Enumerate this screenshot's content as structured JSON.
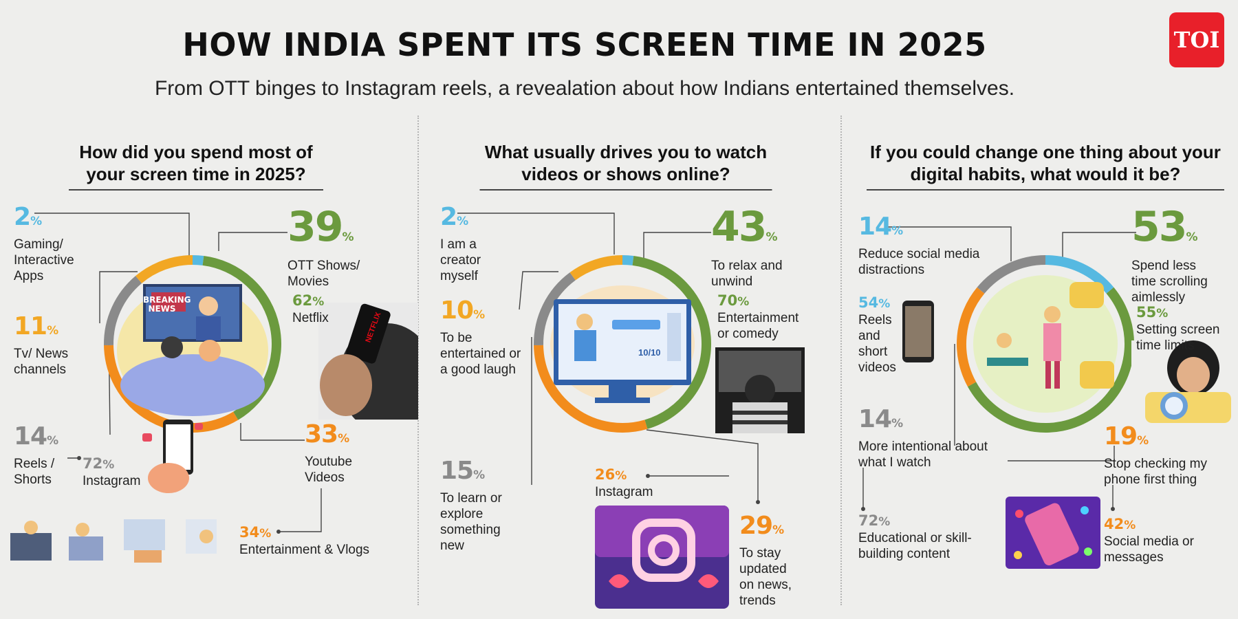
{
  "header": {
    "title": "HOW INDIA SPENT ITS SCREEN TIME IN 2025",
    "subtitle": "From OTT binges to Instagram reels, a revealation about how Indians entertained themselves.",
    "logo": "TOI"
  },
  "colors": {
    "green": "#6b9a3e",
    "orange": "#f28c1c",
    "blue": "#56b9e1",
    "gray": "#8a8a8a",
    "yellow": "#f2a724"
  },
  "panels": [
    {
      "question": "How did you spend most of your screen time in 2025?",
      "items": [
        {
          "value": "2",
          "unit": "%",
          "label": "Gaming/ Interactive Apps"
        },
        {
          "value": "39",
          "unit": "%",
          "label": "OTT Shows/ Movies",
          "sub_value": "62",
          "sub_unit": "%",
          "sub_label": "Netflix"
        },
        {
          "value": "11",
          "unit": "%",
          "label": "Tv/ News channels"
        },
        {
          "value": "14",
          "unit": "%",
          "label": "Reels / Shorts",
          "sub_value": "72",
          "sub_unit": "%",
          "sub_label": "Instagram"
        },
        {
          "value": "33",
          "unit": "%",
          "label": "Youtube Videos",
          "sub_value": "34",
          "sub_unit": "%",
          "sub_label": "Entertainment & Vlogs"
        }
      ],
      "tv_text": "BREAKING NEWS",
      "phone_brand": "NETFLIX"
    },
    {
      "question": "What usually drives you to watch videos or shows online?",
      "items": [
        {
          "value": "2",
          "unit": "%",
          "label": "I am a creator myself"
        },
        {
          "value": "43",
          "unit": "%",
          "label": "To relax and unwind",
          "sub_value": "70",
          "sub_unit": "%",
          "sub_label": "Entertainment or comedy"
        },
        {
          "value": "10",
          "unit": "%",
          "label": "To be entertained or a good laugh"
        },
        {
          "value": "15",
          "unit": "%",
          "label": "To learn or explore something new"
        },
        {
          "value": "29",
          "unit": "%",
          "label": "To stay updated on news, trends",
          "sub_value": "26",
          "sub_unit": "%",
          "sub_label": "Instagram"
        }
      ],
      "screen_score": "10/10"
    },
    {
      "question": "If you could change one thing about your digital habits, what would it be?",
      "items": [
        {
          "value": "14",
          "unit": "%",
          "label": "Reduce social media distractions",
          "sub_value": "54",
          "sub_unit": "%",
          "sub_label": "Reels and short videos"
        },
        {
          "value": "53",
          "unit": "%",
          "label": "Spend less time scrolling aimlessly",
          "sub_value": "55",
          "sub_unit": "%",
          "sub_label": "Setting screen time limits"
        },
        {
          "value": "14",
          "unit": "%",
          "label": "More intentional about what I watch",
          "sub_value": "72",
          "sub_unit": "%",
          "sub_label": "Educational or skill-building content"
        },
        {
          "value": "19",
          "unit": "%",
          "label": "Stop checking my phone first thing",
          "sub_value": "42",
          "sub_unit": "%",
          "sub_label": "Social media or messages"
        }
      ]
    }
  ],
  "donuts": [
    {
      "segments": [
        {
          "pct": 2,
          "color": "#56b9e1"
        },
        {
          "pct": 39,
          "color": "#6b9a3e"
        },
        {
          "pct": 33,
          "color": "#f28c1c"
        },
        {
          "pct": 14,
          "color": "#8a8a8a"
        },
        {
          "pct": 11,
          "color": "#f2a724"
        }
      ]
    },
    {
      "segments": [
        {
          "pct": 2,
          "color": "#56b9e1"
        },
        {
          "pct": 43,
          "color": "#6b9a3e"
        },
        {
          "pct": 29,
          "color": "#f28c1c"
        },
        {
          "pct": 15,
          "color": "#8a8a8a"
        },
        {
          "pct": 10,
          "color": "#f2a724"
        }
      ]
    },
    {
      "segments": [
        {
          "pct": 14,
          "color": "#56b9e1"
        },
        {
          "pct": 53,
          "color": "#6b9a3e"
        },
        {
          "pct": 19,
          "color": "#f28c1c"
        },
        {
          "pct": 14,
          "color": "#8a8a8a"
        }
      ]
    }
  ]
}
